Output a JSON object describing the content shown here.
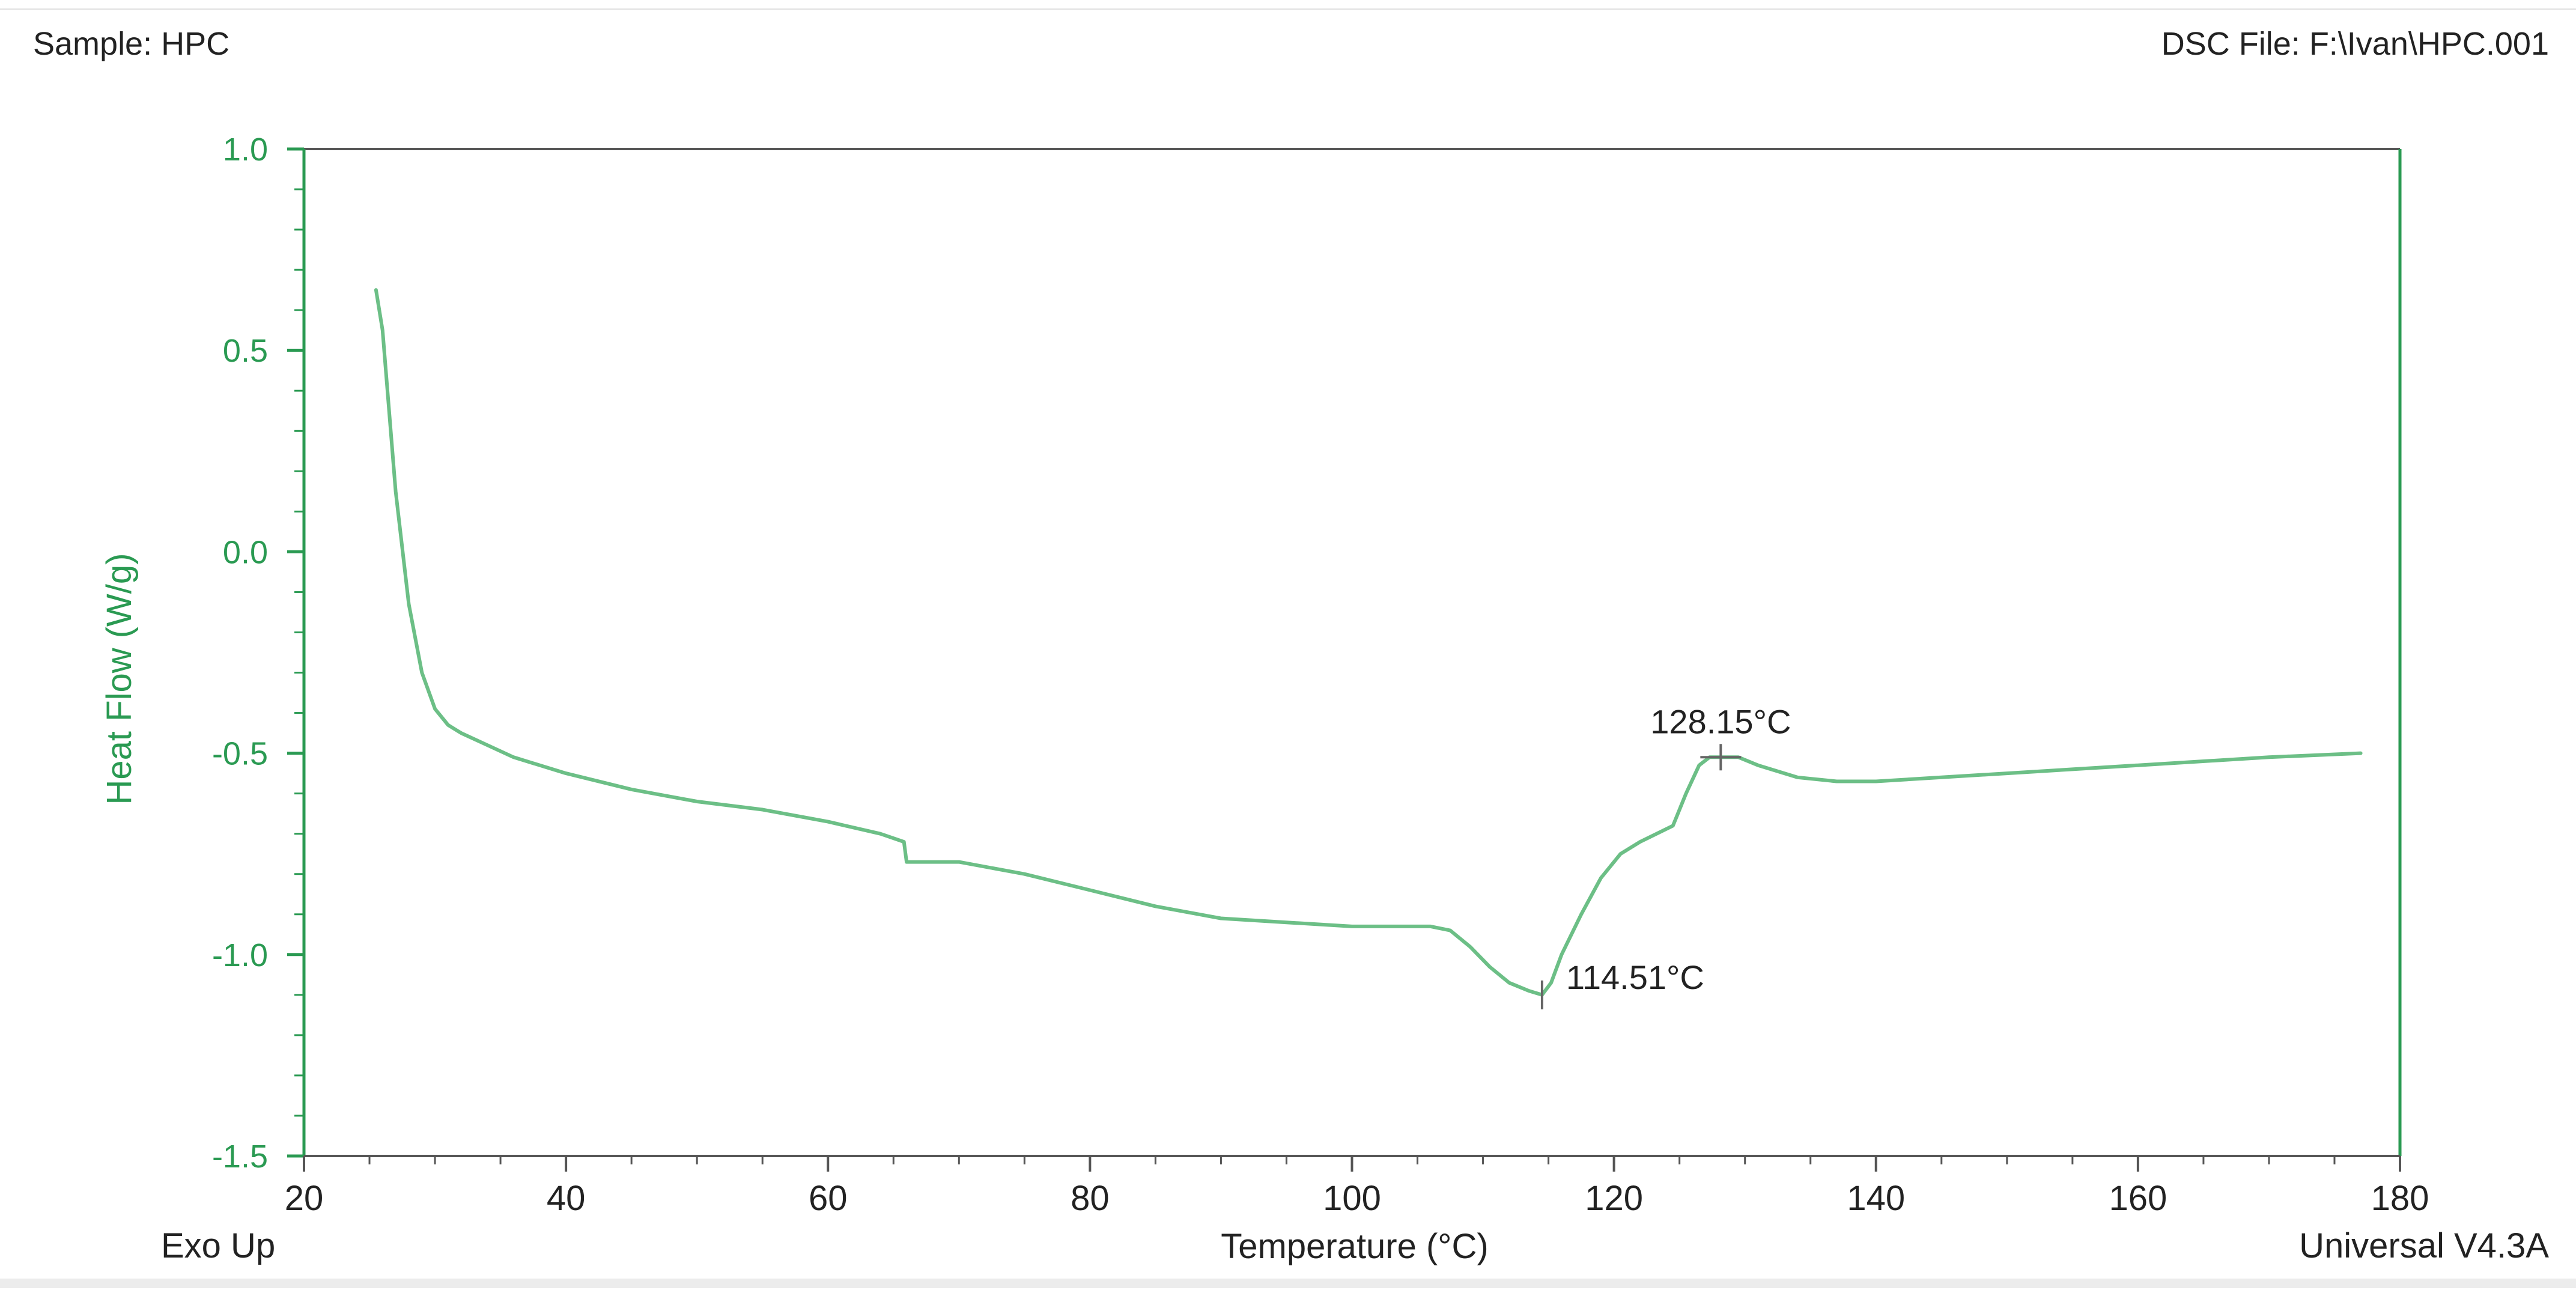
{
  "header": {
    "sample": "Sample: HPC",
    "file": "DSC File: F:\\Ivan\\HPC.001"
  },
  "footer": {
    "left": "Exo Up",
    "right": "Universal V4.3A"
  },
  "chart_data": {
    "type": "line",
    "title": "",
    "xlabel": "Temperature (°C)",
    "ylabel": "Heat Flow (W/g)",
    "xlim": [
      20,
      180
    ],
    "ylim": [
      -1.5,
      1.0
    ],
    "xticks": [
      "20",
      "40",
      "60",
      "80",
      "100",
      "120",
      "140",
      "160",
      "180"
    ],
    "yticks": [
      "1.0",
      "0.5",
      "0.0",
      "-0.5",
      "-1.0",
      "-1.5"
    ],
    "grid": false,
    "colors": {
      "line": "#6cbf86",
      "axis": "#2a9a52",
      "tick_y": "#2a9a52"
    },
    "series": [
      {
        "x": [
          25.5,
          26,
          26.5,
          27,
          28,
          29,
          30,
          31,
          32,
          34,
          36,
          40,
          45,
          50,
          55,
          60,
          64,
          65.8,
          66,
          66.2,
          70,
          75,
          80,
          85,
          90,
          95,
          100,
          104,
          106,
          107.5,
          109,
          110.5,
          112,
          113.5,
          114.51,
          115.2,
          116,
          117.5,
          119,
          120.5,
          122,
          124.5,
          125.5,
          126.5,
          127.3,
          128.15,
          129.5,
          131,
          134,
          137,
          140,
          145,
          150,
          160,
          170,
          177
        ],
        "y": [
          0.65,
          0.55,
          0.35,
          0.15,
          -0.13,
          -0.3,
          -0.39,
          -0.43,
          -0.45,
          -0.48,
          -0.51,
          -0.55,
          -0.59,
          -0.62,
          -0.64,
          -0.67,
          -0.7,
          -0.72,
          -0.77,
          -0.77,
          -0.77,
          -0.8,
          -0.84,
          -0.88,
          -0.91,
          -0.92,
          -0.93,
          -0.93,
          -0.93,
          -0.94,
          -0.98,
          -1.03,
          -1.07,
          -1.09,
          -1.1,
          -1.07,
          -1.0,
          -0.9,
          -0.81,
          -0.75,
          -0.72,
          -0.68,
          -0.6,
          -0.53,
          -0.51,
          -0.51,
          -0.51,
          -0.53,
          -0.56,
          -0.57,
          -0.57,
          -0.56,
          -0.55,
          -0.53,
          -0.51,
          -0.5
        ]
      }
    ],
    "annotations": [
      {
        "x": 128.15,
        "y": -0.51,
        "text": "128.15°C"
      },
      {
        "x": 114.51,
        "y": -1.1,
        "text": "114.51°C"
      }
    ]
  }
}
